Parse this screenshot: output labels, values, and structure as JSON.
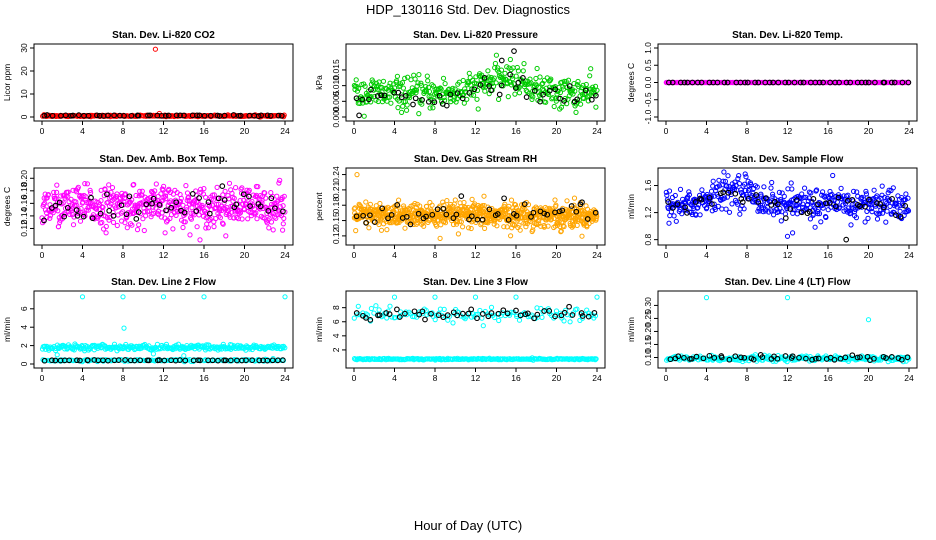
{
  "title": "HDP_130116 Std. Dev. Diagnostics",
  "xlabel": "Hour of Day (UTC)",
  "colors": {
    "black": "#000000",
    "red": "#ff0000",
    "green": "#00cc00",
    "magenta": "#ff00ff",
    "orange": "#ffa500",
    "blue": "#0000ff",
    "cyan": "#00ffff"
  },
  "chart_data": [
    {
      "type": "scatter",
      "title": "Stan. Dev. Li-820 CO2",
      "ylabel": "Licor ppm",
      "xlim": [
        0,
        24
      ],
      "ylim": [
        0,
        30
      ],
      "xticks": [
        0,
        4,
        8,
        12,
        16,
        20,
        24
      ],
      "yticks": [
        0,
        10,
        20,
        30
      ],
      "series": [
        {
          "name": "all",
          "color": "red",
          "baseline": 0.5,
          "spread": 0.15,
          "count": 260,
          "outliers": [
            [
              11.2,
              29.5
            ],
            [
              0.2,
              1.0
            ],
            [
              11.6,
              1.5
            ]
          ]
        },
        {
          "name": "hourly",
          "color": "black",
          "baseline": 0.6,
          "spread": 0.1,
          "count": 48
        }
      ]
    },
    {
      "type": "scatter",
      "title": "Stan. Dev. Li-820 Pressure",
      "ylabel": "kPa",
      "xlim": [
        0,
        24
      ],
      "ylim": [
        0,
        0.022
      ],
      "xticks": [
        0,
        4,
        8,
        12,
        16,
        20,
        24
      ],
      "yticks": [
        0.0,
        0.005,
        0.01,
        0.015
      ],
      "ytick_labels": [
        "0.000",
        "0.005",
        "0.010",
        "0.015"
      ],
      "series": [
        {
          "name": "all",
          "color": "green",
          "baseline": 0.0075,
          "spread": 0.0025,
          "hump": [
            15,
            0.005,
            3
          ],
          "count": 420
        },
        {
          "name": "hourly",
          "color": "black",
          "baseline": 0.0065,
          "spread": 0.0015,
          "hump": [
            15,
            0.004,
            3
          ],
          "count": 48,
          "outliers": [
            [
              15.8,
              0.021
            ],
            [
              14.6,
              0.018
            ],
            [
              0.5,
              0.0005
            ]
          ]
        }
      ]
    },
    {
      "type": "scatter",
      "title": "Stan. Dev. Li-820 Temp.",
      "ylabel": "degrees C",
      "xlim": [
        0,
        24
      ],
      "ylim": [
        -1,
        1
      ],
      "xticks": [
        0,
        4,
        8,
        12,
        16,
        20,
        24
      ],
      "yticks": [
        -1.0,
        -0.5,
        0.0,
        0.5,
        1.0
      ],
      "ytick_labels": [
        "-1.0",
        "-0.5",
        "0.0",
        "0.5",
        "1.0"
      ],
      "series": [
        {
          "name": "all",
          "color": "magenta",
          "baseline": 0.0,
          "spread": 0.0,
          "count": 260
        },
        {
          "name": "hourly",
          "color": "black",
          "baseline": 0.0,
          "spread": 0.0,
          "count": 48
        }
      ]
    },
    {
      "type": "scatter",
      "title": "Stan. Dev. Amb. Box Temp.",
      "ylabel": "degrees C",
      "xlim": [
        0,
        24
      ],
      "ylim": [
        0.1,
        0.21
      ],
      "xticks": [
        0,
        4,
        8,
        12,
        16,
        20,
        24
      ],
      "yticks": [
        0.12,
        0.14,
        0.16,
        0.18,
        0.2
      ],
      "ytick_labels": [
        "0.12",
        "0.14",
        "0.16",
        "0.18",
        "0.20"
      ],
      "series": [
        {
          "name": "all",
          "color": "magenta",
          "baseline": 0.155,
          "spread": 0.016,
          "count": 560
        },
        {
          "name": "hourly",
          "color": "black",
          "baseline": 0.155,
          "spread": 0.012,
          "count": 48
        }
      ]
    },
    {
      "type": "scatter",
      "title": "Stan. Dev. Gas Stream RH",
      "ylabel": "percent",
      "xlim": [
        0,
        24
      ],
      "ylim": [
        0.11,
        0.245
      ],
      "xticks": [
        0,
        4,
        8,
        12,
        16,
        20,
        24
      ],
      "yticks": [
        0.12,
        0.15,
        0.18,
        0.21,
        0.24
      ],
      "ytick_labels": [
        "0.12",
        "0.15",
        "0.18",
        "0.21",
        "0.24"
      ],
      "series": [
        {
          "name": "all",
          "color": "orange",
          "baseline": 0.16,
          "spread": 0.012,
          "count": 760,
          "outliers": [
            [
              0.3,
              0.24
            ],
            [
              8.5,
              0.115
            ]
          ]
        },
        {
          "name": "hourly",
          "color": "black",
          "baseline": 0.165,
          "spread": 0.012,
          "count": 48
        }
      ]
    },
    {
      "type": "scatter",
      "title": "Stan. Dev. Sample Flow",
      "ylabel": "ml/min",
      "xlim": [
        0,
        24
      ],
      "ylim": [
        0.78,
        1.8
      ],
      "xticks": [
        0,
        4,
        8,
        12,
        16,
        20,
        24
      ],
      "yticks": [
        0.8,
        1.2,
        1.6
      ],
      "ytick_labels": [
        "0.8",
        "1.2",
        "1.6"
      ],
      "series": [
        {
          "name": "all",
          "color": "blue",
          "baseline": 1.32,
          "spread": 0.12,
          "hump": [
            7,
            0.22,
            2.5
          ],
          "count": 460,
          "outliers": [
            [
              12,
              0.85
            ],
            [
              12.5,
              0.9
            ]
          ]
        },
        {
          "name": "hourly",
          "color": "black",
          "baseline": 1.3,
          "spread": 0.08,
          "hump": [
            7,
            0.15,
            2.5
          ],
          "count": 48,
          "outliers": [
            [
              17.8,
              0.8
            ]
          ]
        }
      ]
    },
    {
      "type": "scatter",
      "title": "Stan. Dev. Line 2 Flow",
      "ylabel": "ml/min",
      "xlim": [
        0,
        24
      ],
      "ylim": [
        0,
        7.5
      ],
      "xticks": [
        0,
        4,
        8,
        12,
        16,
        20,
        24
      ],
      "yticks": [
        0,
        2,
        4,
        6
      ],
      "series": [
        {
          "name": "all",
          "color": "cyan",
          "baseline": 1.8,
          "spread": 0.15,
          "count": 300,
          "outliers": [
            [
              4,
              7.3
            ],
            [
              8,
              7.3
            ],
            [
              12,
              7.3
            ],
            [
              16,
              7.3
            ],
            [
              24,
              7.3
            ],
            [
              8.1,
              3.9
            ],
            [
              1.5,
              1.0
            ],
            [
              11,
              1.1
            ],
            [
              14,
              0.9
            ]
          ]
        },
        {
          "name": "cyan-low",
          "color": "cyan",
          "baseline": 0.4,
          "spread": 0.05,
          "count": 150
        },
        {
          "name": "hourly",
          "color": "black",
          "baseline": 0.4,
          "spread": 0.02,
          "count": 48
        }
      ]
    },
    {
      "type": "scatter",
      "title": "Stan. Dev. Line 3 Flow",
      "ylabel": "ml/min",
      "xlim": [
        0,
        24
      ],
      "ylim": [
        0,
        9.8
      ],
      "xticks": [
        0,
        4,
        8,
        12,
        16,
        20,
        24
      ],
      "yticks": [
        2,
        4,
        6,
        8
      ],
      "series": [
        {
          "name": "cyan-high",
          "color": "cyan",
          "baseline": 7.0,
          "spread": 0.5,
          "count": 130,
          "outliers": [
            [
              4,
              9.5
            ],
            [
              8,
              9.5
            ],
            [
              12,
              9.5
            ],
            [
              16,
              9.5
            ],
            [
              24,
              9.5
            ]
          ]
        },
        {
          "name": "cyan-low",
          "color": "cyan",
          "baseline": 0.7,
          "spread": 0.05,
          "count": 250
        },
        {
          "name": "hourly",
          "color": "black",
          "baseline": 7.0,
          "spread": 0.5,
          "count": 48
        }
      ]
    },
    {
      "type": "scatter",
      "title": "Stan. Dev. Line 4 (LT) Flow",
      "ylabel": "ml/min",
      "xlim": [
        0,
        24
      ],
      "ylim": [
        0.075,
        0.34
      ],
      "xticks": [
        0,
        4,
        8,
        12,
        16,
        20,
        24
      ],
      "yticks": [
        0.1,
        0.15,
        0.2,
        0.25,
        0.3
      ],
      "ytick_labels": [
        "0.10",
        "0.15",
        "0.20",
        "0.25",
        "0.30"
      ],
      "series": [
        {
          "name": "all",
          "color": "cyan",
          "baseline": 0.096,
          "spread": 0.005,
          "count": 260,
          "outliers": [
            [
              4,
              0.33
            ],
            [
              12,
              0.33
            ],
            [
              20,
              0.245
            ]
          ]
        },
        {
          "name": "hourly",
          "color": "black",
          "baseline": 0.097,
          "spread": 0.005,
          "count": 48
        }
      ]
    }
  ]
}
